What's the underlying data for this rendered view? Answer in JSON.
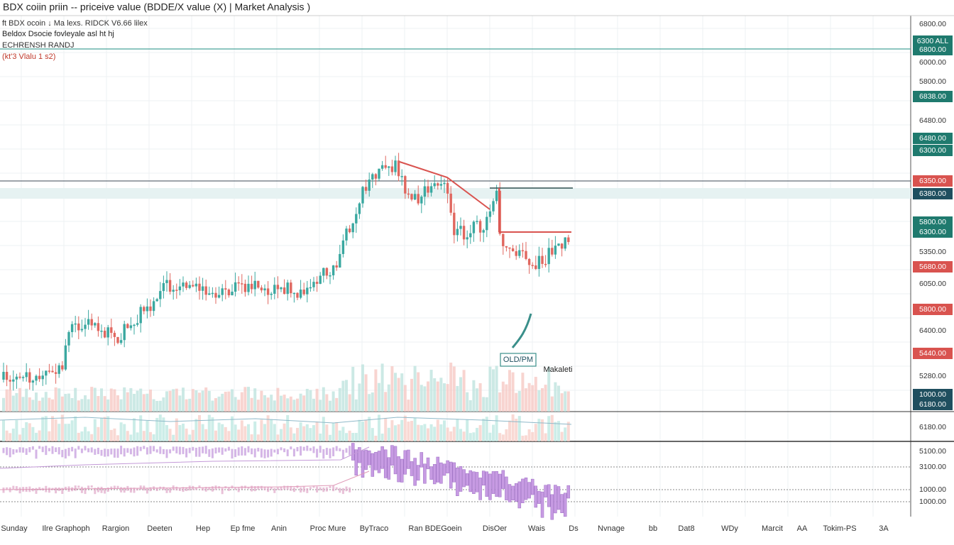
{
  "header": {
    "title": "BDX coiin priin -- priceive value (BDDE/X value (X) | Market Analysis )"
  },
  "legend": [
    "ft BDX ocoin ↓ Ma lexs. RIDCK V6.66 lilex",
    "Beldox Dsocie fovleyale asl ht hj",
    "ECHRENSH RANDJ",
    "(kt'3 Vlalu 1 s2)"
  ],
  "price_labels": [
    "6800.00",
    "6300 ALL",
    "6800.00",
    "6000.00",
    "5800.00",
    "6838.00",
    "6480.00",
    "6480.00",
    "6300.00",
    "6350.00",
    "6380.00",
    "5800.00",
    "6300.00",
    "5350.00",
    "5680.00",
    "6050.00",
    "5800.00",
    "6400.00",
    "5440.00",
    "5280.00",
    "1000.00",
    "6180.00",
    "6180.00",
    "5100.00",
    "3100.00",
    "1000.00",
    "1000.00"
  ],
  "time_labels": [
    "Sunday",
    "Ilre Graphoph",
    "Rargion",
    "Deeten",
    "Hep",
    "Ep fme",
    "Anin",
    "Proc Mure",
    "ByTraco",
    "Ran BDEGoein",
    "DisOer",
    "Wais",
    "Ds",
    "Nvnage",
    "bb",
    "Dat8",
    "WDy",
    "Marcit",
    "AA",
    "Tokim-PS",
    "3A"
  ],
  "annotations": {
    "callout": "OLD/PM",
    "label": "Makaleti"
  }
}
